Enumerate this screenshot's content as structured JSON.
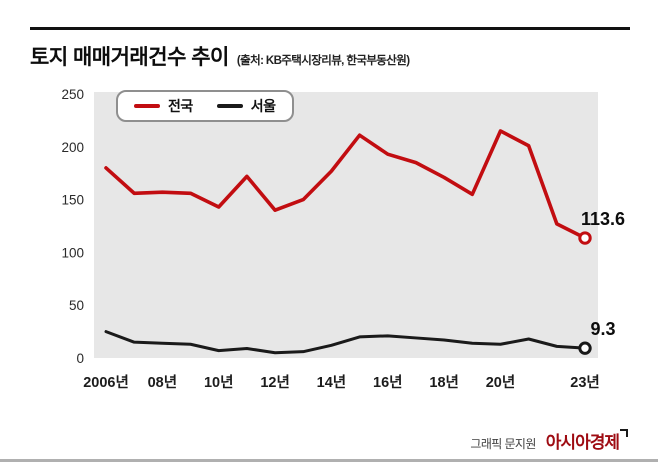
{
  "header": {
    "title": "토지 매매거래건수 추이",
    "source": "(출처: KB주택시장리뷰, 한국부동산원)"
  },
  "footer": {
    "credit": "그래픽 문지원",
    "logo": "아시아경제"
  },
  "colors": {
    "nationwide": "#c20d11",
    "seoul": "#1a1a1a",
    "plot_bg": "#e7e7e7",
    "tick_text": "#2a2a2a",
    "logo_red": "#9e0b12"
  },
  "chart_data": {
    "type": "line",
    "title": "토지 매매거래건수 추이",
    "xlabel": "",
    "ylabel": "",
    "ylim": [
      0,
      250
    ],
    "y_ticks": [
      0,
      50,
      100,
      150,
      200,
      250
    ],
    "grid": false,
    "legend_position": "top-left",
    "x": [
      2006,
      2007,
      2008,
      2009,
      2010,
      2011,
      2012,
      2013,
      2014,
      2015,
      2016,
      2017,
      2018,
      2019,
      2020,
      2021,
      2022,
      2023
    ],
    "x_tick_labels": [
      {
        "year": 2006,
        "label": "2006년"
      },
      {
        "year": 2008,
        "label": "08년"
      },
      {
        "year": 2010,
        "label": "10년"
      },
      {
        "year": 2012,
        "label": "12년"
      },
      {
        "year": 2014,
        "label": "14년"
      },
      {
        "year": 2016,
        "label": "16년"
      },
      {
        "year": 2018,
        "label": "18년"
      },
      {
        "year": 2020,
        "label": "20년"
      },
      {
        "year": 2023,
        "label": "23년"
      }
    ],
    "series": [
      {
        "key": "nationwide",
        "name": "전국",
        "color_key": "nationwide",
        "values": [
          180,
          156,
          157,
          156,
          143,
          172,
          140,
          150,
          177,
          211,
          193,
          185,
          171,
          155,
          215,
          201,
          127,
          113.6
        ],
        "end_label": "113.6"
      },
      {
        "key": "seoul",
        "name": "서울",
        "color_key": "seoul",
        "values": [
          25,
          15,
          14,
          13,
          7,
          9,
          5,
          6,
          12,
          20,
          21,
          19,
          17,
          14,
          13,
          18,
          11,
          9.3
        ],
        "end_label": "9.3"
      }
    ]
  }
}
